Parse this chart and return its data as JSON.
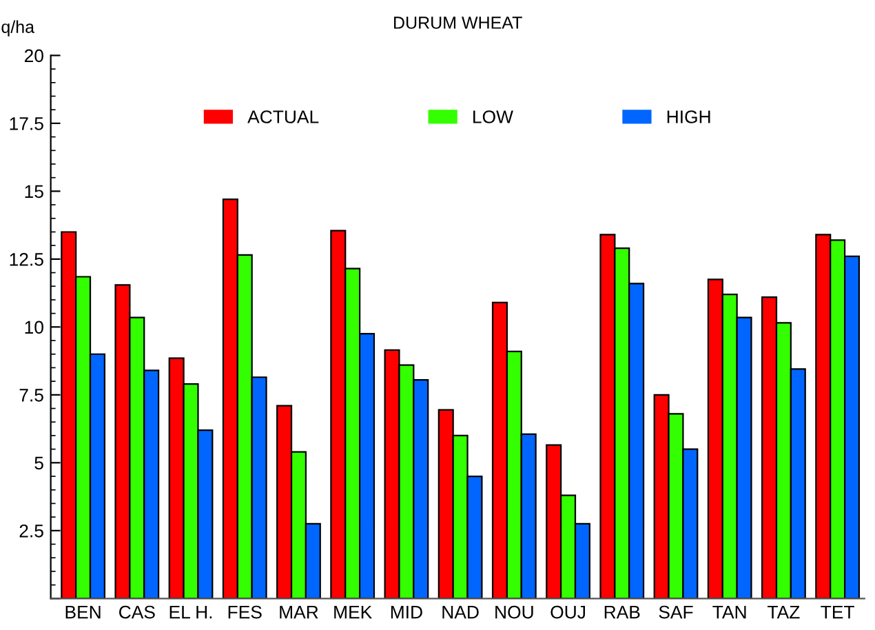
{
  "chart_data": {
    "type": "bar",
    "title": "DURUM WHEAT",
    "ylabel": "q/ha",
    "categories": [
      "BEN",
      "CAS",
      "EL H.",
      "FES",
      "MAR",
      "MEK",
      "MID",
      "NAD",
      "NOU",
      "OUJ",
      "RAB",
      "SAF",
      "TAN",
      "TAZ",
      "TET"
    ],
    "series": [
      {
        "name": "ACTUAL",
        "color": "#ff0000",
        "values": [
          13.5,
          11.55,
          8.85,
          14.7,
          7.1,
          13.55,
          9.15,
          6.95,
          10.9,
          5.65,
          13.4,
          7.5,
          11.75,
          11.1,
          13.4
        ]
      },
      {
        "name": "LOW",
        "color": "#33ff00",
        "values": [
          11.85,
          10.35,
          7.9,
          12.65,
          5.4,
          12.15,
          8.6,
          6.0,
          9.1,
          3.8,
          12.9,
          6.8,
          11.2,
          10.15,
          13.2
        ]
      },
      {
        "name": "HIGH",
        "color": "#0066ff",
        "values": [
          9.0,
          8.4,
          6.2,
          8.15,
          2.75,
          9.75,
          8.05,
          4.5,
          6.05,
          2.75,
          11.6,
          5.5,
          10.35,
          8.45,
          12.6
        ]
      }
    ],
    "ylim": [
      0,
      20
    ],
    "yticks": [
      {
        "value": 0,
        "label": null
      },
      2.5,
      5,
      7.5,
      10,
      12.5,
      15,
      17.5,
      20
    ],
    "grid": false,
    "legend": "top"
  }
}
